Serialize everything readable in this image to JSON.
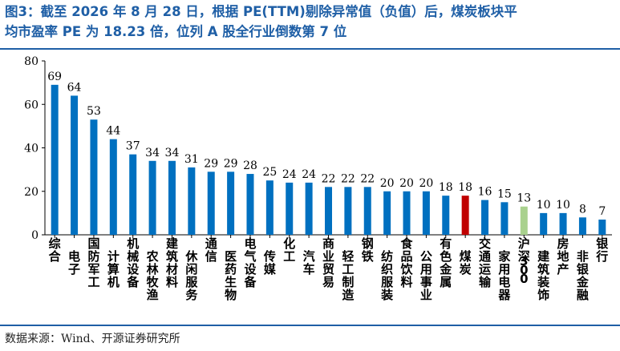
{
  "title": {
    "line1": "图3：截至 2026 年 8 月 28 日，根据 PE(TTM)剔除异常值（负值）后，煤炭板块平",
    "line2": "均市盈率 PE 为 18.23 倍，位列 A 股全行业倒数第 7 位"
  },
  "source": "数据来源：Wind、开源证券研究所",
  "colors": {
    "accent": "#1f5fa6",
    "bar": "#0070c0",
    "highlight": "#c00000",
    "benchmark": "#a9d18e"
  },
  "chart_data": {
    "type": "bar",
    "categories": [
      "综合",
      "电子",
      "国防军工",
      "计算机",
      "机械设备",
      "农林牧渔",
      "建筑材料",
      "休闲服务",
      "通信",
      "医药生物",
      "电气设备",
      "传媒",
      "化工",
      "汽车",
      "商业贸易",
      "轻工制造",
      "钢铁",
      "纺织服装",
      "食品饮料",
      "公用事业",
      "有色金属",
      "煤炭",
      "交通运输",
      "家用电器",
      "沪深300",
      "建筑装饰",
      "房地产",
      "非银金融",
      "银行"
    ],
    "values": [
      69,
      64,
      53,
      44,
      37,
      34,
      34,
      31,
      29,
      29,
      28,
      25,
      24,
      24,
      22,
      22,
      22,
      20,
      20,
      20,
      18,
      18,
      16,
      15,
      13,
      10,
      10,
      8,
      7
    ],
    "highlight": {
      "煤炭": "#c00000",
      "沪深300": "#a9d18e"
    },
    "ylim": [
      0,
      80
    ],
    "yticks": [
      0,
      20,
      40,
      60,
      80
    ],
    "grid": false,
    "data_labels": true
  }
}
